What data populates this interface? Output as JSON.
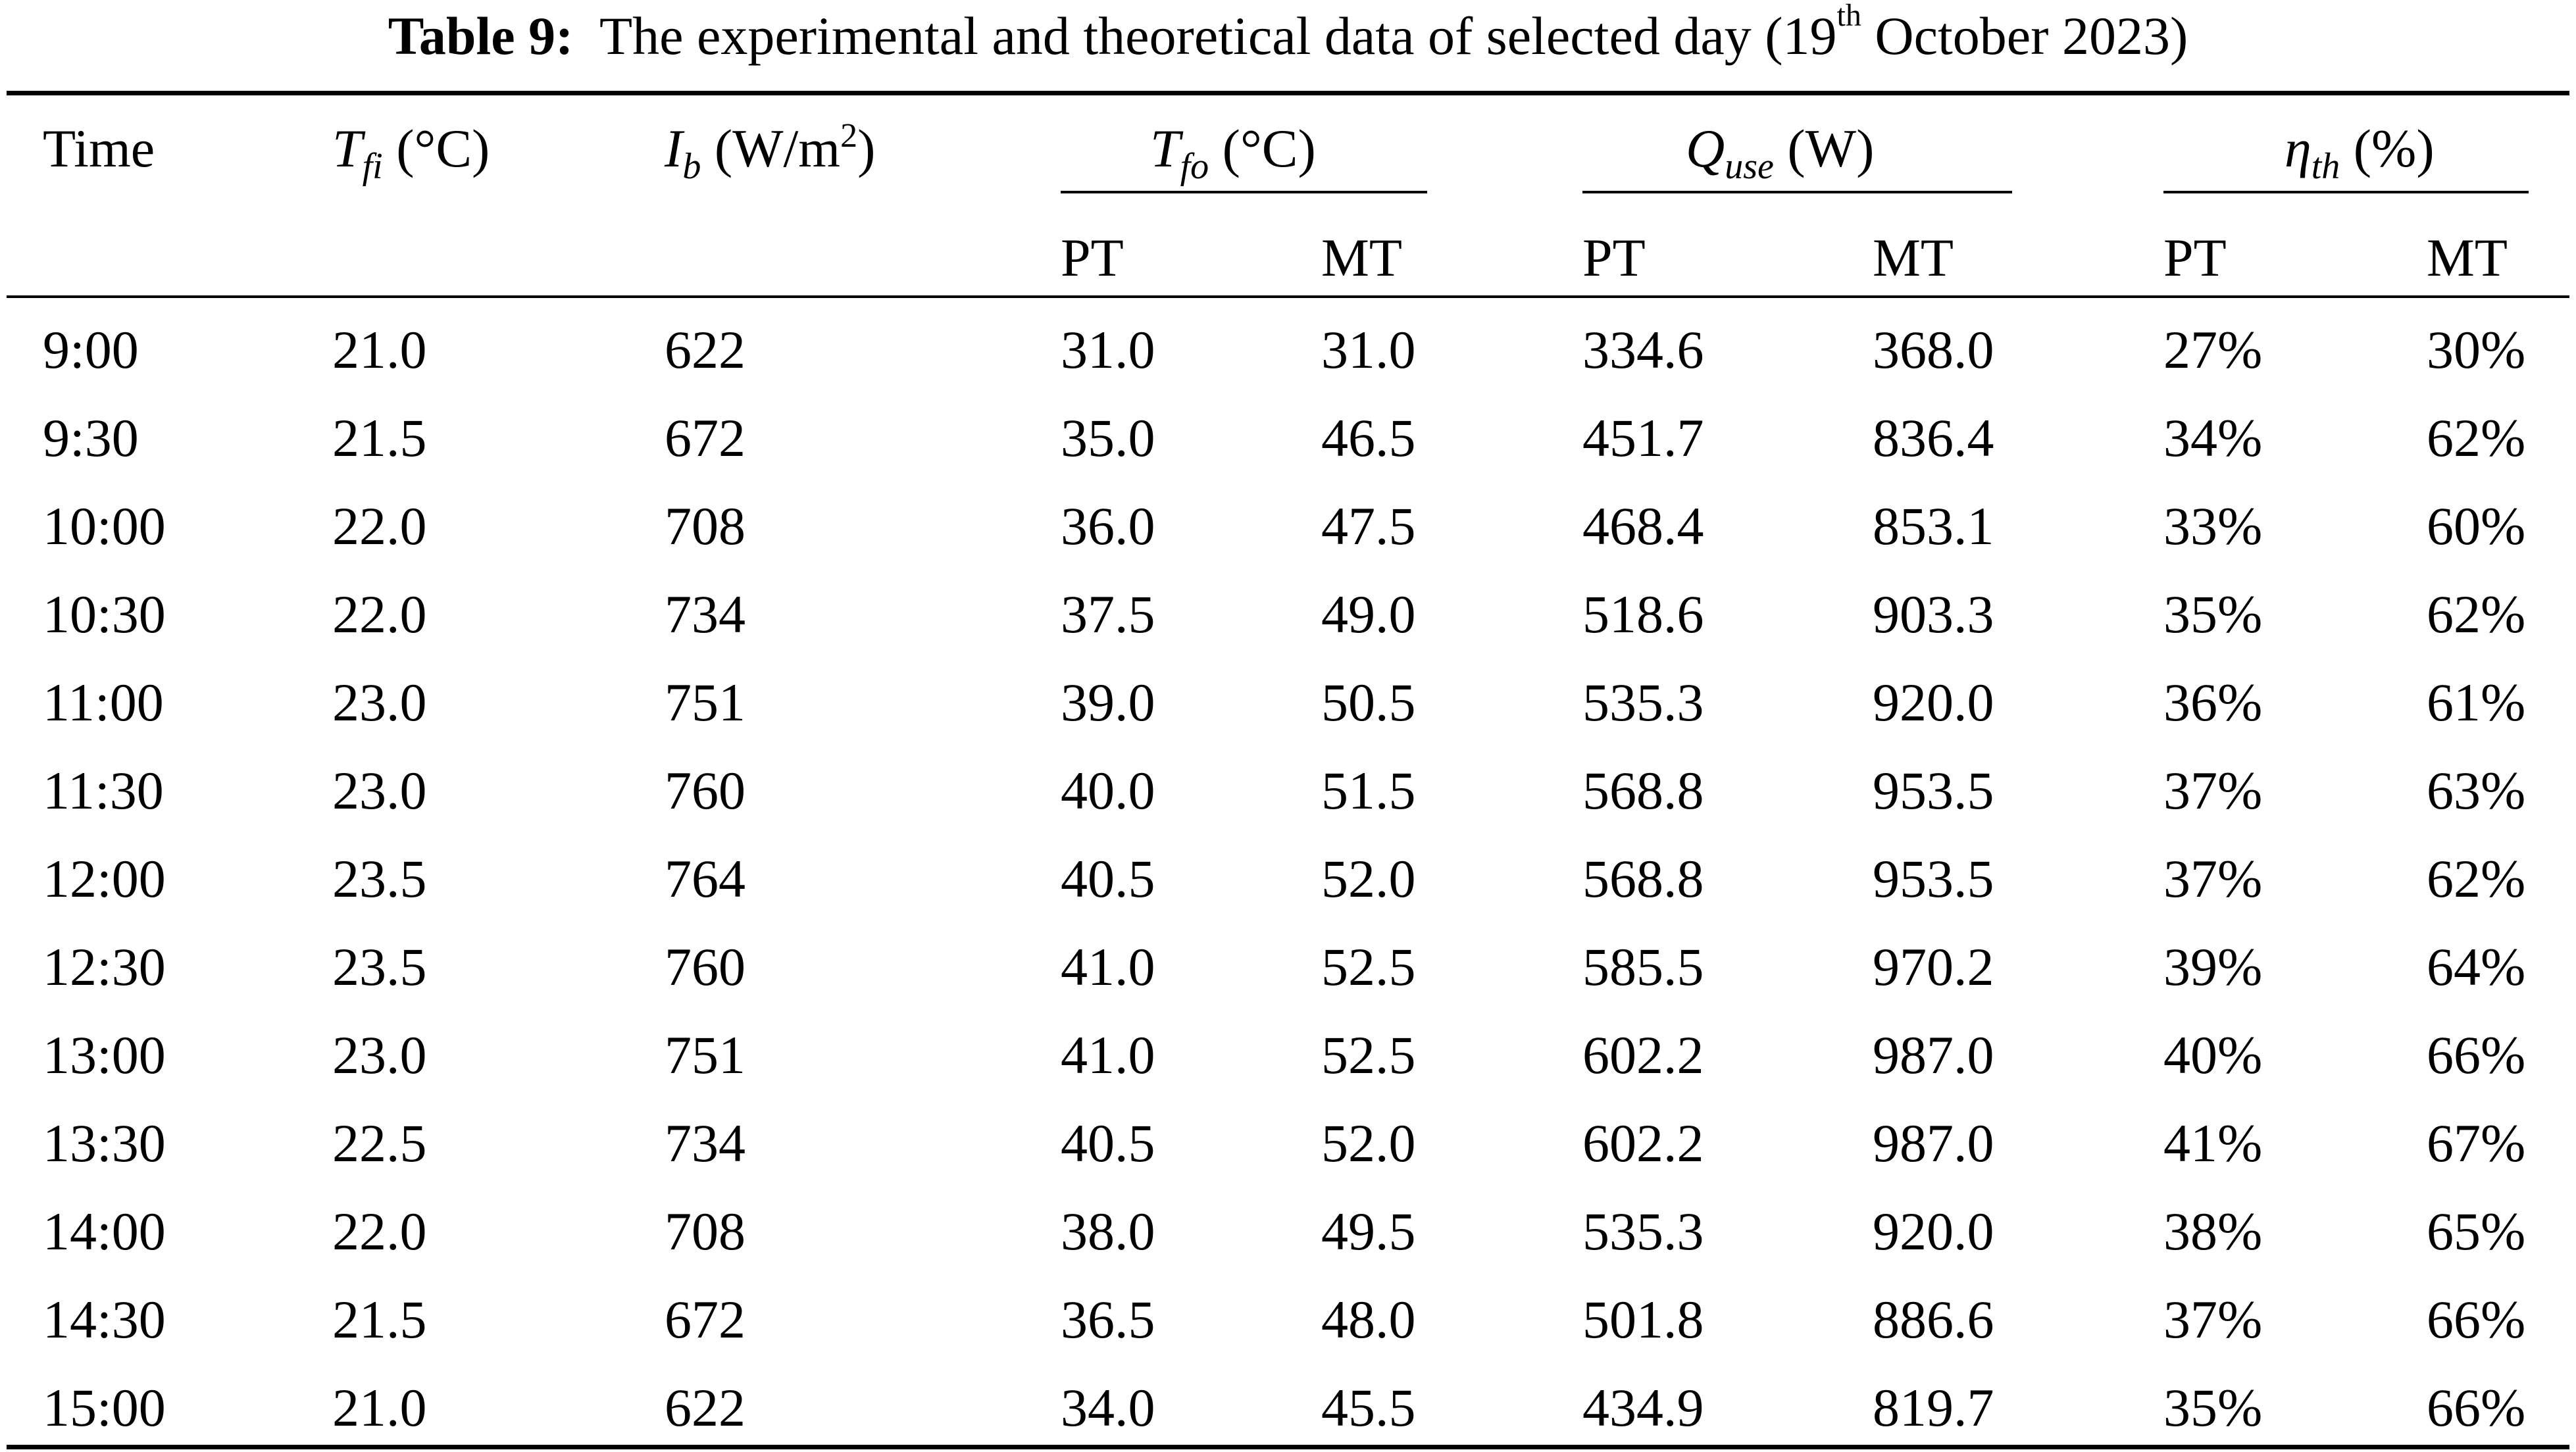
{
  "caption": {
    "label": "Table 9:",
    "text_before_sup": "The experimental and theoretical data of selected day (19",
    "sup": "th",
    "text_after_sup": " October 2023)"
  },
  "header": {
    "time": "Time",
    "tfi_sym": "T",
    "tfi_sub": "fi",
    "tfi_unit": " (°C)",
    "ib_sym": "I",
    "ib_sub": "b",
    "ib_unit_pre": " (W/m",
    "ib_unit_sup": "2",
    "ib_unit_post": ")",
    "tfo_sym": "T",
    "tfo_sub": "fo",
    "tfo_unit": " (°C)",
    "quse_sym": "Q",
    "quse_sub": "use",
    "quse_unit": " (W)",
    "eta_sym": "η",
    "eta_sub": "th",
    "eta_unit": " (%)",
    "sub_labels": [
      "PT",
      "MT",
      "PT",
      "MT",
      "PT",
      "MT"
    ]
  },
  "rows": [
    [
      "9:00",
      "21.0",
      "622",
      "31.0",
      "31.0",
      "334.6",
      "368.0",
      "27%",
      "30%"
    ],
    [
      "9:30",
      "21.5",
      "672",
      "35.0",
      "46.5",
      "451.7",
      "836.4",
      "34%",
      "62%"
    ],
    [
      "10:00",
      "22.0",
      "708",
      "36.0",
      "47.5",
      "468.4",
      "853.1",
      "33%",
      "60%"
    ],
    [
      "10:30",
      "22.0",
      "734",
      "37.5",
      "49.0",
      "518.6",
      "903.3",
      "35%",
      "62%"
    ],
    [
      "11:00",
      "23.0",
      "751",
      "39.0",
      "50.5",
      "535.3",
      "920.0",
      "36%",
      "61%"
    ],
    [
      "11:30",
      "23.0",
      "760",
      "40.0",
      "51.5",
      "568.8",
      "953.5",
      "37%",
      "63%"
    ],
    [
      "12:00",
      "23.5",
      "764",
      "40.5",
      "52.0",
      "568.8",
      "953.5",
      "37%",
      "62%"
    ],
    [
      "12:30",
      "23.5",
      "760",
      "41.0",
      "52.5",
      "585.5",
      "970.2",
      "39%",
      "64%"
    ],
    [
      "13:00",
      "23.0",
      "751",
      "41.0",
      "52.5",
      "602.2",
      "987.0",
      "40%",
      "66%"
    ],
    [
      "13:30",
      "22.5",
      "734",
      "40.5",
      "52.0",
      "602.2",
      "987.0",
      "41%",
      "67%"
    ],
    [
      "14:00",
      "22.0",
      "708",
      "38.0",
      "49.5",
      "535.3",
      "920.0",
      "38%",
      "65%"
    ],
    [
      "14:30",
      "21.5",
      "672",
      "36.5",
      "48.0",
      "501.8",
      "886.6",
      "37%",
      "66%"
    ],
    [
      "15:00",
      "21.0",
      "622",
      "34.0",
      "45.5",
      "434.9",
      "819.7",
      "35%",
      "66%"
    ]
  ]
}
